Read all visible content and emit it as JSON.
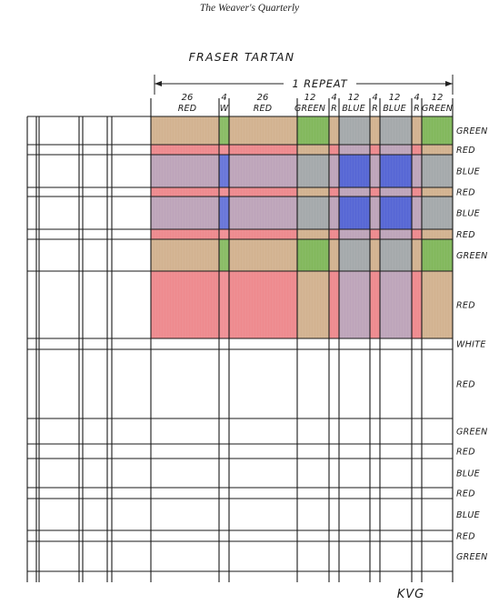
{
  "header": {
    "journal": "The Weaver's Quarterly"
  },
  "diagram": {
    "title": "FRASER TARTAN",
    "repeat_label": "1 REPEAT",
    "signature": "KVG",
    "colors": {
      "GREEN": "#74b04a",
      "RED": "#ec7d82",
      "BLUE": "#4d5ed3",
      "WHITE": "#ffffff"
    },
    "columns": [
      {
        "count": "26",
        "name": "RED"
      },
      {
        "count": "4",
        "name": "W"
      },
      {
        "count": "26",
        "name": "RED"
      },
      {
        "count": "12",
        "name": "GREEN"
      },
      {
        "count": "4",
        "name": "R"
      },
      {
        "count": "12",
        "name": "BLUE"
      },
      {
        "count": "4",
        "name": "R"
      },
      {
        "count": "12",
        "name": "BLUE"
      },
      {
        "count": "4",
        "name": "R"
      },
      {
        "count": "12",
        "name": "GREEN"
      }
    ],
    "rows": [
      "GREEN",
      "RED",
      "BLUE",
      "RED",
      "BLUE",
      "RED",
      "GREEN",
      "RED",
      "WHITE",
      "RED",
      "GREEN",
      "RED",
      "BLUE",
      "RED",
      "BLUE",
      "RED",
      "GREEN"
    ]
  }
}
